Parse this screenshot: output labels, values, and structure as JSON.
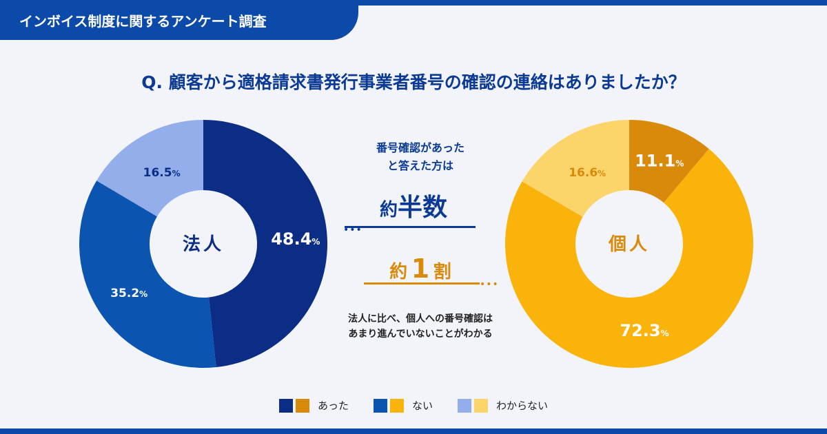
{
  "header": {
    "title": "インボイス制度に関するアンケート調査"
  },
  "question": "Q. 顧客から適格請求書発行事業者番号の確認の連絡はありましたか？",
  "middle": {
    "caption_line1": "番号確認があった",
    "caption_line2": "と答えた方は",
    "corp_prefix": "約",
    "corp_value": "半数",
    "indiv_prefix": "約",
    "indiv_value": "1",
    "indiv_suffix": "割",
    "note_line1": "法人に比べ、個人への番号確認は",
    "note_line2": "あまり進んでいないことがわかる"
  },
  "colors": {
    "corp_yes": "#0b2d85",
    "corp_no": "#0b54b0",
    "corp_unknown": "#93aeea",
    "indiv_yes": "#d98a0a",
    "indiv_no": "#fab30a",
    "indiv_unknown": "#fcd56a"
  },
  "chart_data": [
    {
      "type": "pie",
      "title": "法人",
      "categories": [
        "あった",
        "ない",
        "わからない"
      ],
      "values": [
        48.4,
        35.2,
        16.5
      ],
      "labels": [
        "48.4",
        "35.2",
        "16.5"
      ],
      "unit": "%"
    },
    {
      "type": "pie",
      "title": "個人",
      "categories": [
        "あった",
        "ない",
        "わからない"
      ],
      "values": [
        11.1,
        72.3,
        16.6
      ],
      "labels": [
        "11.1",
        "72.3",
        "16.6"
      ],
      "unit": "%"
    }
  ],
  "legend": {
    "yes": "あった",
    "no": "ない",
    "unknown": "わからない"
  }
}
